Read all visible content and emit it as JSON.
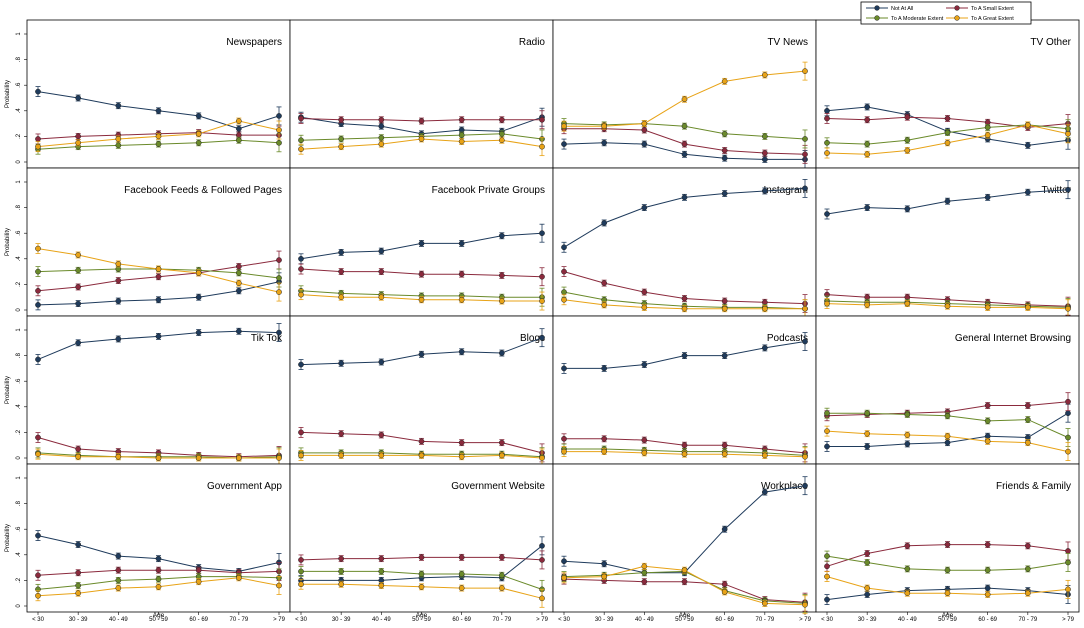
{
  "legend": {
    "items": [
      "Not At All",
      "To A Small Extent",
      "To A Moderate Extent",
      "To A Great Extent"
    ],
    "colors": [
      "#1f3b5c",
      "#8b2a3d",
      "#6a8a2a",
      "#e8a317"
    ]
  },
  "axis": {
    "ylabel": "Probability",
    "xlabel": "Age",
    "categories": [
      "< 30",
      "30 - 39",
      "40 - 49",
      "50 - 59",
      "60 - 69",
      "70 - 79",
      "> 79"
    ],
    "yticks": [
      "0",
      ".2",
      ".4",
      ".6",
      ".8",
      "1"
    ]
  },
  "chart_data": [
    {
      "type": "line",
      "title": "Newspapers",
      "ylim": [
        0,
        1
      ],
      "series": [
        {
          "name": "Not At All",
          "values": [
            0.55,
            0.5,
            0.44,
            0.4,
            0.36,
            0.26,
            0.36
          ]
        },
        {
          "name": "To A Small Extent",
          "values": [
            0.18,
            0.2,
            0.21,
            0.22,
            0.23,
            0.21,
            0.21
          ]
        },
        {
          "name": "To A Moderate Extent",
          "values": [
            0.1,
            0.12,
            0.13,
            0.14,
            0.15,
            0.17,
            0.15
          ]
        },
        {
          "name": "To A Great Extent",
          "values": [
            0.12,
            0.15,
            0.18,
            0.2,
            0.22,
            0.32,
            0.25
          ]
        }
      ]
    },
    {
      "type": "line",
      "title": "Radio",
      "ylim": [
        0,
        1
      ],
      "series": [
        {
          "name": "Not At All",
          "values": [
            0.35,
            0.3,
            0.28,
            0.22,
            0.25,
            0.24,
            0.35
          ]
        },
        {
          "name": "To A Small Extent",
          "values": [
            0.34,
            0.33,
            0.33,
            0.32,
            0.33,
            0.33,
            0.33
          ]
        },
        {
          "name": "To A Moderate Extent",
          "values": [
            0.17,
            0.18,
            0.19,
            0.2,
            0.21,
            0.22,
            0.18
          ]
        },
        {
          "name": "To A Great Extent",
          "values": [
            0.1,
            0.12,
            0.14,
            0.18,
            0.16,
            0.17,
            0.12
          ]
        }
      ]
    },
    {
      "type": "line",
      "title": "TV News",
      "ylim": [
        0,
        1
      ],
      "series": [
        {
          "name": "Not At All",
          "values": [
            0.14,
            0.15,
            0.14,
            0.06,
            0.03,
            0.02,
            0.02
          ]
        },
        {
          "name": "To A Small Extent",
          "values": [
            0.26,
            0.26,
            0.25,
            0.14,
            0.09,
            0.07,
            0.06
          ]
        },
        {
          "name": "To A Moderate Extent",
          "values": [
            0.3,
            0.29,
            0.3,
            0.28,
            0.22,
            0.2,
            0.18
          ]
        },
        {
          "name": "To A Great Extent",
          "values": [
            0.28,
            0.28,
            0.3,
            0.49,
            0.63,
            0.68,
            0.71
          ]
        }
      ]
    },
    {
      "type": "line",
      "title": "TV Other",
      "ylim": [
        0,
        1
      ],
      "series": [
        {
          "name": "Not At All",
          "values": [
            0.4,
            0.43,
            0.37,
            0.24,
            0.18,
            0.13,
            0.17
          ]
        },
        {
          "name": "To A Small Extent",
          "values": [
            0.34,
            0.33,
            0.35,
            0.34,
            0.31,
            0.27,
            0.3
          ]
        },
        {
          "name": "To A Moderate Extent",
          "values": [
            0.15,
            0.14,
            0.17,
            0.23,
            0.27,
            0.29,
            0.26
          ]
        },
        {
          "name": "To A Great Extent",
          "values": [
            0.07,
            0.06,
            0.09,
            0.15,
            0.21,
            0.29,
            0.22
          ]
        }
      ]
    },
    {
      "type": "line",
      "title": "Facebook Feeds & Followed Pages",
      "ylim": [
        0,
        1
      ],
      "series": [
        {
          "name": "Not At All",
          "values": [
            0.04,
            0.05,
            0.07,
            0.08,
            0.1,
            0.15,
            0.22
          ]
        },
        {
          "name": "To A Small Extent",
          "values": [
            0.15,
            0.18,
            0.23,
            0.26,
            0.29,
            0.34,
            0.39
          ]
        },
        {
          "name": "To A Moderate Extent",
          "values": [
            0.3,
            0.31,
            0.32,
            0.32,
            0.31,
            0.29,
            0.25
          ]
        },
        {
          "name": "To A Great Extent",
          "values": [
            0.48,
            0.43,
            0.36,
            0.32,
            0.29,
            0.21,
            0.14
          ]
        }
      ]
    },
    {
      "type": "line",
      "title": "Facebook Private Groups",
      "ylim": [
        0,
        1
      ],
      "series": [
        {
          "name": "Not At All",
          "values": [
            0.4,
            0.45,
            0.46,
            0.52,
            0.52,
            0.58,
            0.6
          ]
        },
        {
          "name": "To A Small Extent",
          "values": [
            0.32,
            0.3,
            0.3,
            0.28,
            0.28,
            0.27,
            0.26
          ]
        },
        {
          "name": "To A Moderate Extent",
          "values": [
            0.15,
            0.13,
            0.12,
            0.11,
            0.11,
            0.1,
            0.1
          ]
        },
        {
          "name": "To A Great Extent",
          "values": [
            0.12,
            0.1,
            0.1,
            0.08,
            0.08,
            0.07,
            0.07
          ]
        }
      ]
    },
    {
      "type": "line",
      "title": "Instagram",
      "ylim": [
        0,
        1
      ],
      "series": [
        {
          "name": "Not At All",
          "values": [
            0.49,
            0.68,
            0.8,
            0.88,
            0.91,
            0.93,
            0.95
          ]
        },
        {
          "name": "To A Small Extent",
          "values": [
            0.3,
            0.21,
            0.14,
            0.09,
            0.07,
            0.06,
            0.05
          ]
        },
        {
          "name": "To A Moderate Extent",
          "values": [
            0.14,
            0.08,
            0.05,
            0.03,
            0.02,
            0.02,
            0.01
          ]
        },
        {
          "name": "To A Great Extent",
          "values": [
            0.08,
            0.04,
            0.02,
            0.01,
            0.01,
            0.01,
            0.01
          ]
        }
      ]
    },
    {
      "type": "line",
      "title": "Twitter",
      "ylim": [
        0,
        1
      ],
      "series": [
        {
          "name": "Not At All",
          "values": [
            0.75,
            0.8,
            0.79,
            0.85,
            0.88,
            0.92,
            0.94
          ]
        },
        {
          "name": "To A Small Extent",
          "values": [
            0.12,
            0.1,
            0.1,
            0.08,
            0.06,
            0.04,
            0.03
          ]
        },
        {
          "name": "To A Moderate Extent",
          "values": [
            0.07,
            0.06,
            0.06,
            0.05,
            0.04,
            0.03,
            0.02
          ]
        },
        {
          "name": "To A Great Extent",
          "values": [
            0.05,
            0.04,
            0.05,
            0.03,
            0.02,
            0.02,
            0.01
          ]
        }
      ]
    },
    {
      "type": "line",
      "title": "Tik Tok",
      "ylim": [
        0,
        1
      ],
      "series": [
        {
          "name": "Not At All",
          "values": [
            0.77,
            0.9,
            0.93,
            0.95,
            0.98,
            0.99,
            0.98
          ]
        },
        {
          "name": "To A Small Extent",
          "values": [
            0.16,
            0.07,
            0.05,
            0.04,
            0.02,
            0.01,
            0.02
          ]
        },
        {
          "name": "To A Moderate Extent",
          "values": [
            0.04,
            0.02,
            0.01,
            0.01,
            0.01,
            0.0,
            0.01
          ]
        },
        {
          "name": "To A Great Extent",
          "values": [
            0.03,
            0.01,
            0.01,
            0.0,
            0.0,
            0.0,
            0.0
          ]
        }
      ]
    },
    {
      "type": "line",
      "title": "Blogs",
      "ylim": [
        0,
        1
      ],
      "series": [
        {
          "name": "Not At All",
          "values": [
            0.73,
            0.74,
            0.75,
            0.81,
            0.83,
            0.82,
            0.94
          ]
        },
        {
          "name": "To A Small Extent",
          "values": [
            0.2,
            0.19,
            0.18,
            0.13,
            0.12,
            0.12,
            0.04
          ]
        },
        {
          "name": "To A Moderate Extent",
          "values": [
            0.04,
            0.04,
            0.04,
            0.03,
            0.03,
            0.03,
            0.01
          ]
        },
        {
          "name": "To A Great Extent",
          "values": [
            0.02,
            0.02,
            0.02,
            0.02,
            0.01,
            0.02,
            0.0
          ]
        }
      ]
    },
    {
      "type": "line",
      "title": "Podcasts",
      "ylim": [
        0,
        1
      ],
      "series": [
        {
          "name": "Not At All",
          "values": [
            0.7,
            0.7,
            0.73,
            0.8,
            0.8,
            0.86,
            0.91
          ]
        },
        {
          "name": "To A Small Extent",
          "values": [
            0.15,
            0.15,
            0.14,
            0.1,
            0.1,
            0.07,
            0.04
          ]
        },
        {
          "name": "To A Moderate Extent",
          "values": [
            0.07,
            0.07,
            0.06,
            0.05,
            0.05,
            0.04,
            0.02
          ]
        },
        {
          "name": "To A Great Extent",
          "values": [
            0.05,
            0.05,
            0.04,
            0.03,
            0.03,
            0.02,
            0.01
          ]
        }
      ]
    },
    {
      "type": "line",
      "title": "General Internet Browsing",
      "ylim": [
        0,
        1
      ],
      "series": [
        {
          "name": "Not At All",
          "values": [
            0.09,
            0.09,
            0.11,
            0.12,
            0.17,
            0.16,
            0.35
          ]
        },
        {
          "name": "To A Small Extent",
          "values": [
            0.33,
            0.34,
            0.35,
            0.36,
            0.41,
            0.41,
            0.44
          ]
        },
        {
          "name": "To A Moderate Extent",
          "values": [
            0.35,
            0.35,
            0.34,
            0.33,
            0.29,
            0.3,
            0.16
          ]
        },
        {
          "name": "To A Great Extent",
          "values": [
            0.21,
            0.19,
            0.18,
            0.17,
            0.13,
            0.12,
            0.05
          ]
        }
      ]
    },
    {
      "type": "line",
      "title": "Government App",
      "ylim": [
        0,
        1
      ],
      "series": [
        {
          "name": "Not At All",
          "values": [
            0.55,
            0.48,
            0.39,
            0.37,
            0.3,
            0.27,
            0.34
          ]
        },
        {
          "name": "To A Small Extent",
          "values": [
            0.24,
            0.26,
            0.28,
            0.28,
            0.28,
            0.26,
            0.27
          ]
        },
        {
          "name": "To A Moderate Extent",
          "values": [
            0.13,
            0.16,
            0.2,
            0.21,
            0.23,
            0.23,
            0.22
          ]
        },
        {
          "name": "To A Great Extent",
          "values": [
            0.08,
            0.1,
            0.14,
            0.15,
            0.19,
            0.22,
            0.16
          ]
        }
      ]
    },
    {
      "type": "line",
      "title": "Government Website",
      "ylim": [
        0,
        1
      ],
      "series": [
        {
          "name": "Not At All",
          "values": [
            0.2,
            0.2,
            0.2,
            0.22,
            0.23,
            0.22,
            0.47
          ]
        },
        {
          "name": "To A Small Extent",
          "values": [
            0.36,
            0.37,
            0.37,
            0.38,
            0.38,
            0.38,
            0.36
          ]
        },
        {
          "name": "To A Moderate Extent",
          "values": [
            0.27,
            0.27,
            0.27,
            0.25,
            0.25,
            0.24,
            0.13
          ]
        },
        {
          "name": "To A Great Extent",
          "values": [
            0.17,
            0.17,
            0.16,
            0.15,
            0.14,
            0.14,
            0.06
          ]
        }
      ]
    },
    {
      "type": "line",
      "title": "Workplace",
      "ylim": [
        0,
        1
      ],
      "series": [
        {
          "name": "Not At All",
          "values": [
            0.35,
            0.33,
            0.26,
            0.26,
            0.6,
            0.89,
            0.94
          ]
        },
        {
          "name": "To A Small Extent",
          "values": [
            0.21,
            0.2,
            0.19,
            0.19,
            0.17,
            0.05,
            0.03
          ]
        },
        {
          "name": "To A Moderate Extent",
          "values": [
            0.23,
            0.24,
            0.26,
            0.27,
            0.12,
            0.04,
            0.02
          ]
        },
        {
          "name": "To A Great Extent",
          "values": [
            0.22,
            0.23,
            0.31,
            0.28,
            0.11,
            0.02,
            0.01
          ]
        }
      ]
    },
    {
      "type": "line",
      "title": "Friends & Family",
      "ylim": [
        0,
        1
      ],
      "series": [
        {
          "name": "Not At All",
          "values": [
            0.05,
            0.09,
            0.12,
            0.13,
            0.14,
            0.12,
            0.09
          ]
        },
        {
          "name": "To A Small Extent",
          "values": [
            0.31,
            0.41,
            0.47,
            0.48,
            0.48,
            0.47,
            0.43
          ]
        },
        {
          "name": "To A Moderate Extent",
          "values": [
            0.39,
            0.34,
            0.29,
            0.28,
            0.28,
            0.29,
            0.34
          ]
        },
        {
          "name": "To A Great Extent",
          "values": [
            0.23,
            0.14,
            0.1,
            0.1,
            0.09,
            0.1,
            0.13
          ]
        }
      ]
    }
  ]
}
